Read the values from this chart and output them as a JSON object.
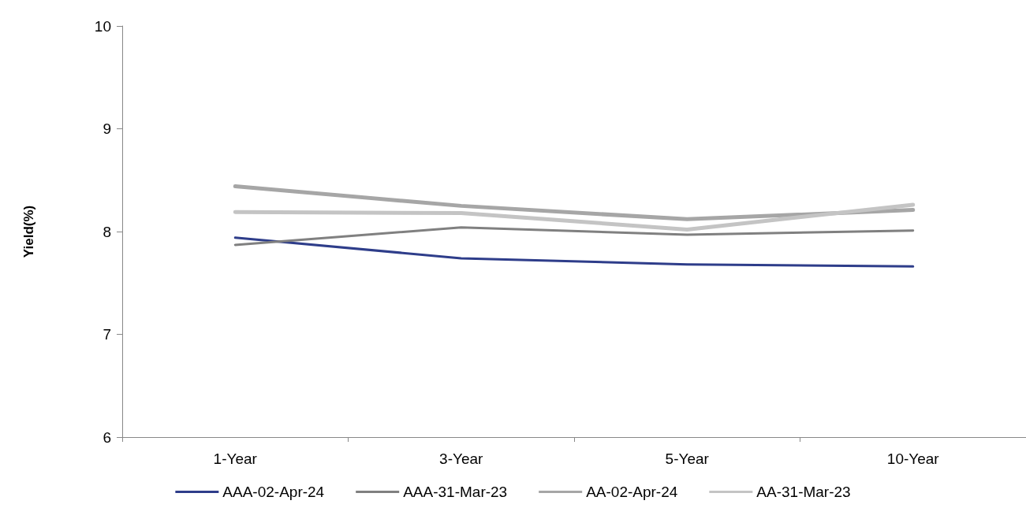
{
  "chart_data": {
    "type": "line",
    "ylabel": "Yield(%)",
    "categories": [
      "1-Year",
      "3-Year",
      "5-Year",
      "10-Year"
    ],
    "series": [
      {
        "name": "AAA-02-Apr-24",
        "color": "#2e3d8a",
        "values": [
          7.94,
          7.74,
          7.68,
          7.66
        ]
      },
      {
        "name": "AAA-31-Mar-23",
        "color": "#808080",
        "values": [
          7.87,
          8.04,
          7.97,
          8.01
        ]
      },
      {
        "name": "AA-02-Apr-24",
        "color": "#a6a6a6",
        "values": [
          8.44,
          8.25,
          8.12,
          8.21
        ]
      },
      {
        "name": "AA-31-Mar-23",
        "color": "#c4c4c4",
        "values": [
          8.19,
          8.18,
          8.02,
          8.26
        ]
      }
    ],
    "ylim": [
      6,
      10
    ],
    "yticks": [
      6,
      7,
      8,
      9,
      10
    ],
    "grid": false,
    "legend": "bottom",
    "marker": "none",
    "line_style": "solid"
  }
}
